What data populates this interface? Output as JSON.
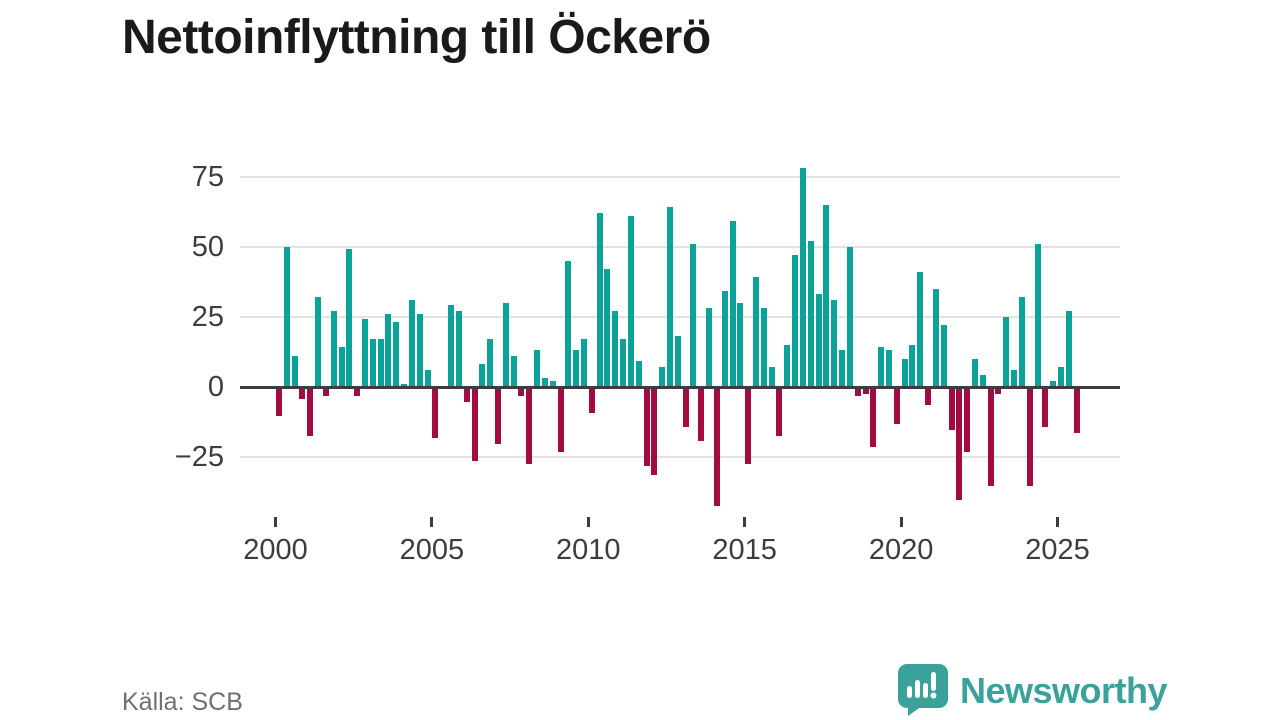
{
  "title": "Nettoinflyttning till Öckerö",
  "source": "Källa: SCB",
  "logo": {
    "brand": "Newsworthy"
  },
  "colors": {
    "positive": "#0ba29a",
    "negative": "#a40b40",
    "zero_line": "#3d3d3d",
    "grid": "#e2e2e2",
    "logo_teal": "#3ba29b"
  },
  "chart_data": {
    "type": "bar",
    "title": "Nettoinflyttning till Öckerö",
    "xlabel": "",
    "ylabel": "",
    "grid": true,
    "ylim": [
      -45,
      80
    ],
    "yticks": [
      {
        "value": 75,
        "label": "75"
      },
      {
        "value": 50,
        "label": "50"
      },
      {
        "value": 25,
        "label": "25"
      },
      {
        "value": 0,
        "label": "0"
      },
      {
        "value": -25,
        "label": "−25"
      }
    ],
    "xticks": [
      {
        "value": 2000,
        "label": "2000"
      },
      {
        "value": 2005,
        "label": "2005"
      },
      {
        "value": 2010,
        "label": "2010"
      },
      {
        "value": 2015,
        "label": "2015"
      },
      {
        "value": 2020,
        "label": "2020"
      },
      {
        "value": 2025,
        "label": "2025"
      }
    ],
    "x": [
      "2000 Q1",
      "2000 Q2",
      "2000 Q3",
      "2000 Q4",
      "2001 Q1",
      "2001 Q2",
      "2001 Q3",
      "2001 Q4",
      "2002 Q1",
      "2002 Q2",
      "2002 Q3",
      "2002 Q4",
      "2003 Q1",
      "2003 Q2",
      "2003 Q3",
      "2003 Q4",
      "2004 Q1",
      "2004 Q2",
      "2004 Q3",
      "2004 Q4",
      "2005 Q1",
      "2005 Q2",
      "2005 Q3",
      "2005 Q4",
      "2006 Q1",
      "2006 Q2",
      "2006 Q3",
      "2006 Q4",
      "2007 Q1",
      "2007 Q2",
      "2007 Q3",
      "2007 Q4",
      "2008 Q1",
      "2008 Q2",
      "2008 Q3",
      "2008 Q4",
      "2009 Q1",
      "2009 Q2",
      "2009 Q3",
      "2009 Q4",
      "2010 Q1",
      "2010 Q2",
      "2010 Q3",
      "2010 Q4",
      "2011 Q1",
      "2011 Q2",
      "2011 Q3",
      "2011 Q4",
      "2012 Q1",
      "2012 Q2",
      "2012 Q3",
      "2012 Q4",
      "2013 Q1",
      "2013 Q2",
      "2013 Q3",
      "2013 Q4",
      "2014 Q1",
      "2014 Q2",
      "2014 Q3",
      "2014 Q4",
      "2015 Q1",
      "2015 Q2",
      "2015 Q3",
      "2015 Q4",
      "2016 Q1",
      "2016 Q2",
      "2016 Q3",
      "2016 Q4",
      "2017 Q1",
      "2017 Q2",
      "2017 Q3",
      "2017 Q4",
      "2018 Q1",
      "2018 Q2",
      "2018 Q3",
      "2018 Q4",
      "2019 Q1",
      "2019 Q2",
      "2019 Q3",
      "2019 Q4",
      "2020 Q1",
      "2020 Q2",
      "2020 Q3",
      "2020 Q4",
      "2021 Q1",
      "2021 Q2",
      "2021 Q3",
      "2021 Q4",
      "2022 Q1",
      "2022 Q2",
      "2022 Q3",
      "2022 Q4",
      "2023 Q1",
      "2023 Q2",
      "2023 Q3",
      "2023 Q4",
      "2024 Q1",
      "2024 Q2",
      "2024 Q3",
      "2024 Q4",
      "2025 Q1",
      "2025 Q2",
      "2025 Q3"
    ],
    "values": [
      -10,
      50,
      11,
      -4,
      -17,
      32,
      -3,
      27,
      14,
      49,
      -3,
      24,
      17,
      17,
      26,
      23,
      1,
      31,
      26,
      6,
      -18,
      0,
      29,
      27,
      -5,
      -26,
      8,
      17,
      -20,
      30,
      11,
      -3,
      -27,
      13,
      3,
      2,
      -23,
      45,
      13,
      17,
      -9,
      62,
      42,
      27,
      17,
      61,
      9,
      -28,
      -31,
      7,
      64,
      18,
      -14,
      51,
      -19,
      28,
      -42,
      34,
      59,
      30,
      -27,
      39,
      28,
      7,
      -17,
      15,
      47,
      78,
      52,
      33,
      65,
      31,
      13,
      50,
      -3,
      -2,
      -21,
      14,
      13,
      -13,
      10,
      15,
      41,
      -6,
      35,
      22,
      -15,
      -40,
      -23,
      10,
      4,
      -35,
      -2,
      25,
      6,
      32,
      -35,
      51,
      -14,
      2,
      7,
      27,
      -16
    ]
  }
}
